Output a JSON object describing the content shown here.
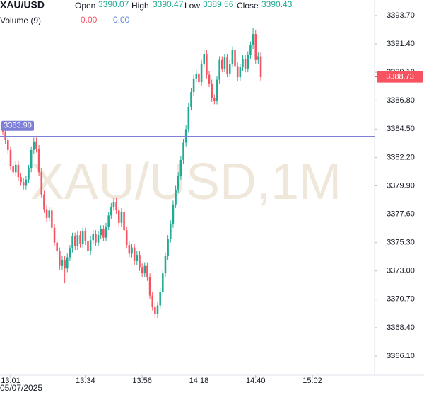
{
  "chart_data": {
    "type": "candlestick",
    "symbol": "XAU/USD",
    "watermark": "XAU/USD,1M",
    "legend": {
      "open_label": "Open",
      "open": "3390.07",
      "high_label": "High",
      "high": "3390.47",
      "low_label": "Low",
      "low": "3389.56",
      "close_label": "Close",
      "close": "3390.43",
      "volume_label": "Volume (9)",
      "volume_1": "0.00",
      "volume_2": "0.00"
    },
    "date_label": "05/07/2025",
    "up_color": "#22ab94",
    "down_color": "#f7525f",
    "open": [
      3384.6,
      3384.3,
      3383.6,
      3382.8,
      3381.5,
      3381.0,
      3381.6,
      3380.6,
      3380.2,
      3379.9,
      3380.4,
      3381.3,
      3382.8,
      3383.5,
      3382.9,
      3381.0,
      3379.2,
      3378.0,
      3377.3,
      3377.9,
      3376.5,
      3375.3,
      3374.6,
      3373.4,
      3373.9,
      3373.2,
      3374.1,
      3374.8,
      3375.8,
      3375.0,
      3375.9,
      3375.2,
      3376.2,
      3375.4,
      3374.6,
      3375.5,
      3376.0,
      3375.3,
      3375.9,
      3376.4,
      3375.7,
      3376.6,
      3377.5,
      3378.2,
      3378.6,
      3377.9,
      3376.9,
      3377.8,
      3376.3,
      3375.1,
      3374.4,
      3374.9,
      3373.8,
      3374.3,
      3373.3,
      3372.8,
      3373.4,
      3372.5,
      3371.0,
      3370.1,
      3369.5,
      3370.2,
      3371.3,
      3372.8,
      3374.2,
      3375.6,
      3376.8,
      3378.4,
      3379.6,
      3380.7,
      3382.0,
      3383.4,
      3384.5,
      3386.3,
      3387.5,
      3388.6,
      3389.0,
      3388.3,
      3389.8,
      3390.6,
      3388.9,
      3388.2,
      3387.0,
      3386.8,
      3388.5,
      3390.1,
      3389.4,
      3390.3,
      3389.0,
      3389.8,
      3390.9,
      3389.6,
      3388.7,
      3389.5,
      3390.2,
      3389.4,
      3390.5,
      3391.3,
      3392.2,
      3390.1,
      3390.4
    ],
    "high": [
      3384.9,
      3384.6,
      3383.9,
      3383.1,
      3381.8,
      3381.9,
      3381.9,
      3380.9,
      3380.5,
      3380.7,
      3381.6,
      3383.1,
      3383.8,
      3383.8,
      3383.2,
      3381.3,
      3379.5,
      3378.3,
      3378.2,
      3378.2,
      3376.8,
      3375.6,
      3374.9,
      3374.2,
      3374.2,
      3374.4,
      3375.1,
      3376.1,
      3376.1,
      3376.2,
      3376.2,
      3376.5,
      3376.5,
      3375.7,
      3375.8,
      3376.3,
      3376.3,
      3376.2,
      3376.7,
      3376.7,
      3376.9,
      3377.8,
      3378.5,
      3378.9,
      3378.9,
      3378.2,
      3378.1,
      3378.1,
      3376.6,
      3375.4,
      3375.2,
      3375.2,
      3374.6,
      3374.6,
      3373.6,
      3373.7,
      3373.7,
      3372.8,
      3371.3,
      3370.4,
      3370.5,
      3371.6,
      3373.1,
      3374.5,
      3375.9,
      3377.1,
      3378.7,
      3379.9,
      3381.0,
      3382.3,
      3383.7,
      3384.8,
      3386.6,
      3387.8,
      3388.9,
      3389.3,
      3389.3,
      3390.1,
      3390.9,
      3390.9,
      3389.2,
      3388.5,
      3387.3,
      3388.8,
      3390.4,
      3390.4,
      3390.6,
      3390.6,
      3390.1,
      3391.2,
      3391.2,
      3389.9,
      3389.8,
      3390.5,
      3390.5,
      3390.8,
      3391.6,
      3392.7,
      3392.5,
      3390.7,
      3390.7
    ],
    "low": [
      3384.0,
      3383.3,
      3382.5,
      3381.2,
      3380.7,
      3380.7,
      3380.3,
      3379.9,
      3379.6,
      3379.6,
      3380.1,
      3381.0,
      3382.5,
      3382.6,
      3380.7,
      3378.9,
      3377.7,
      3377.0,
      3377.0,
      3376.2,
      3375.0,
      3374.3,
      3373.1,
      3373.1,
      3372.0,
      3372.9,
      3373.8,
      3374.5,
      3374.7,
      3374.7,
      3374.9,
      3374.9,
      3375.1,
      3374.3,
      3374.3,
      3375.2,
      3375.0,
      3375.0,
      3375.6,
      3375.4,
      3375.4,
      3376.3,
      3377.2,
      3377.9,
      3377.6,
      3376.6,
      3376.6,
      3376.0,
      3374.8,
      3374.1,
      3374.1,
      3373.5,
      3373.5,
      3373.0,
      3372.5,
      3372.5,
      3372.2,
      3370.7,
      3369.8,
      3369.2,
      3369.2,
      3369.9,
      3371.0,
      3372.5,
      3373.9,
      3375.3,
      3376.5,
      3378.1,
      3379.3,
      3380.4,
      3381.7,
      3383.1,
      3384.2,
      3386.0,
      3387.2,
      3388.3,
      3388.0,
      3388.0,
      3389.5,
      3388.6,
      3387.9,
      3386.7,
      3386.5,
      3386.5,
      3388.2,
      3389.1,
      3389.1,
      3388.7,
      3388.7,
      3389.5,
      3389.3,
      3388.4,
      3388.4,
      3389.2,
      3389.1,
      3389.1,
      3390.2,
      3391.0,
      3389.8,
      3389.8,
      3388.4
    ],
    "close": [
      3384.3,
      3383.6,
      3382.8,
      3381.5,
      3381.0,
      3381.6,
      3380.6,
      3380.2,
      3379.9,
      3380.4,
      3381.3,
      3382.8,
      3383.5,
      3382.9,
      3381.0,
      3379.2,
      3378.0,
      3377.3,
      3377.9,
      3376.5,
      3375.3,
      3374.6,
      3373.4,
      3373.9,
      3373.2,
      3374.1,
      3374.8,
      3375.8,
      3375.0,
      3375.9,
      3375.2,
      3376.2,
      3375.4,
      3374.6,
      3375.5,
      3376.0,
      3375.3,
      3375.9,
      3376.4,
      3375.7,
      3376.6,
      3377.5,
      3378.2,
      3378.6,
      3377.9,
      3376.9,
      3377.8,
      3376.3,
      3375.1,
      3374.4,
      3374.9,
      3373.8,
      3374.3,
      3373.3,
      3372.8,
      3373.4,
      3372.5,
      3371.0,
      3370.1,
      3369.5,
      3370.2,
      3371.3,
      3372.8,
      3374.2,
      3375.6,
      3376.8,
      3378.4,
      3379.6,
      3380.7,
      3382.0,
      3383.4,
      3384.5,
      3386.3,
      3387.5,
      3388.6,
      3389.0,
      3388.3,
      3389.8,
      3390.6,
      3388.9,
      3388.2,
      3387.0,
      3386.8,
      3388.5,
      3390.1,
      3389.4,
      3390.3,
      3389.0,
      3389.8,
      3390.9,
      3389.6,
      3388.7,
      3389.5,
      3390.2,
      3389.4,
      3390.5,
      3391.3,
      3392.2,
      3390.1,
      3390.4,
      3388.7
    ],
    "xlim": [
      -1.1,
      144.1
    ],
    "xticks": [
      {
        "value": 3,
        "label": "13:01"
      },
      {
        "value": 32,
        "label": "13:34"
      },
      {
        "value": 54,
        "label": "13:56"
      },
      {
        "value": 76,
        "label": "14:18"
      },
      {
        "value": 98,
        "label": "14:40"
      },
      {
        "value": 120,
        "label": "15:02"
      }
    ],
    "ylim": [
      3364.55,
      3394.96
    ],
    "yticks": [
      {
        "value": 3393.7,
        "label": "3393.70"
      },
      {
        "value": 3391.4,
        "label": "3391.40"
      },
      {
        "value": 3389.1,
        "label": "3389.10"
      },
      {
        "value": 3386.8,
        "label": "3386.80"
      },
      {
        "value": 3384.5,
        "label": "3384.50"
      },
      {
        "value": 3382.2,
        "label": "3382.20"
      },
      {
        "value": 3379.9,
        "label": "3379.90"
      },
      {
        "value": 3377.6,
        "label": "3377.60"
      },
      {
        "value": 3375.3,
        "label": "3375.30"
      },
      {
        "value": 3373.0,
        "label": "3373.00"
      },
      {
        "value": 3370.7,
        "label": "3370.70"
      },
      {
        "value": 3368.4,
        "label": "3368.40"
      },
      {
        "value": 3366.1,
        "label": "3366.10"
      }
    ],
    "price_line": {
      "value": 3383.9,
      "label": "3383.90",
      "color": "#7e7fd6"
    },
    "last_price": {
      "value": 3388.73,
      "label": "3388.73",
      "color": "#f7525f"
    }
  }
}
